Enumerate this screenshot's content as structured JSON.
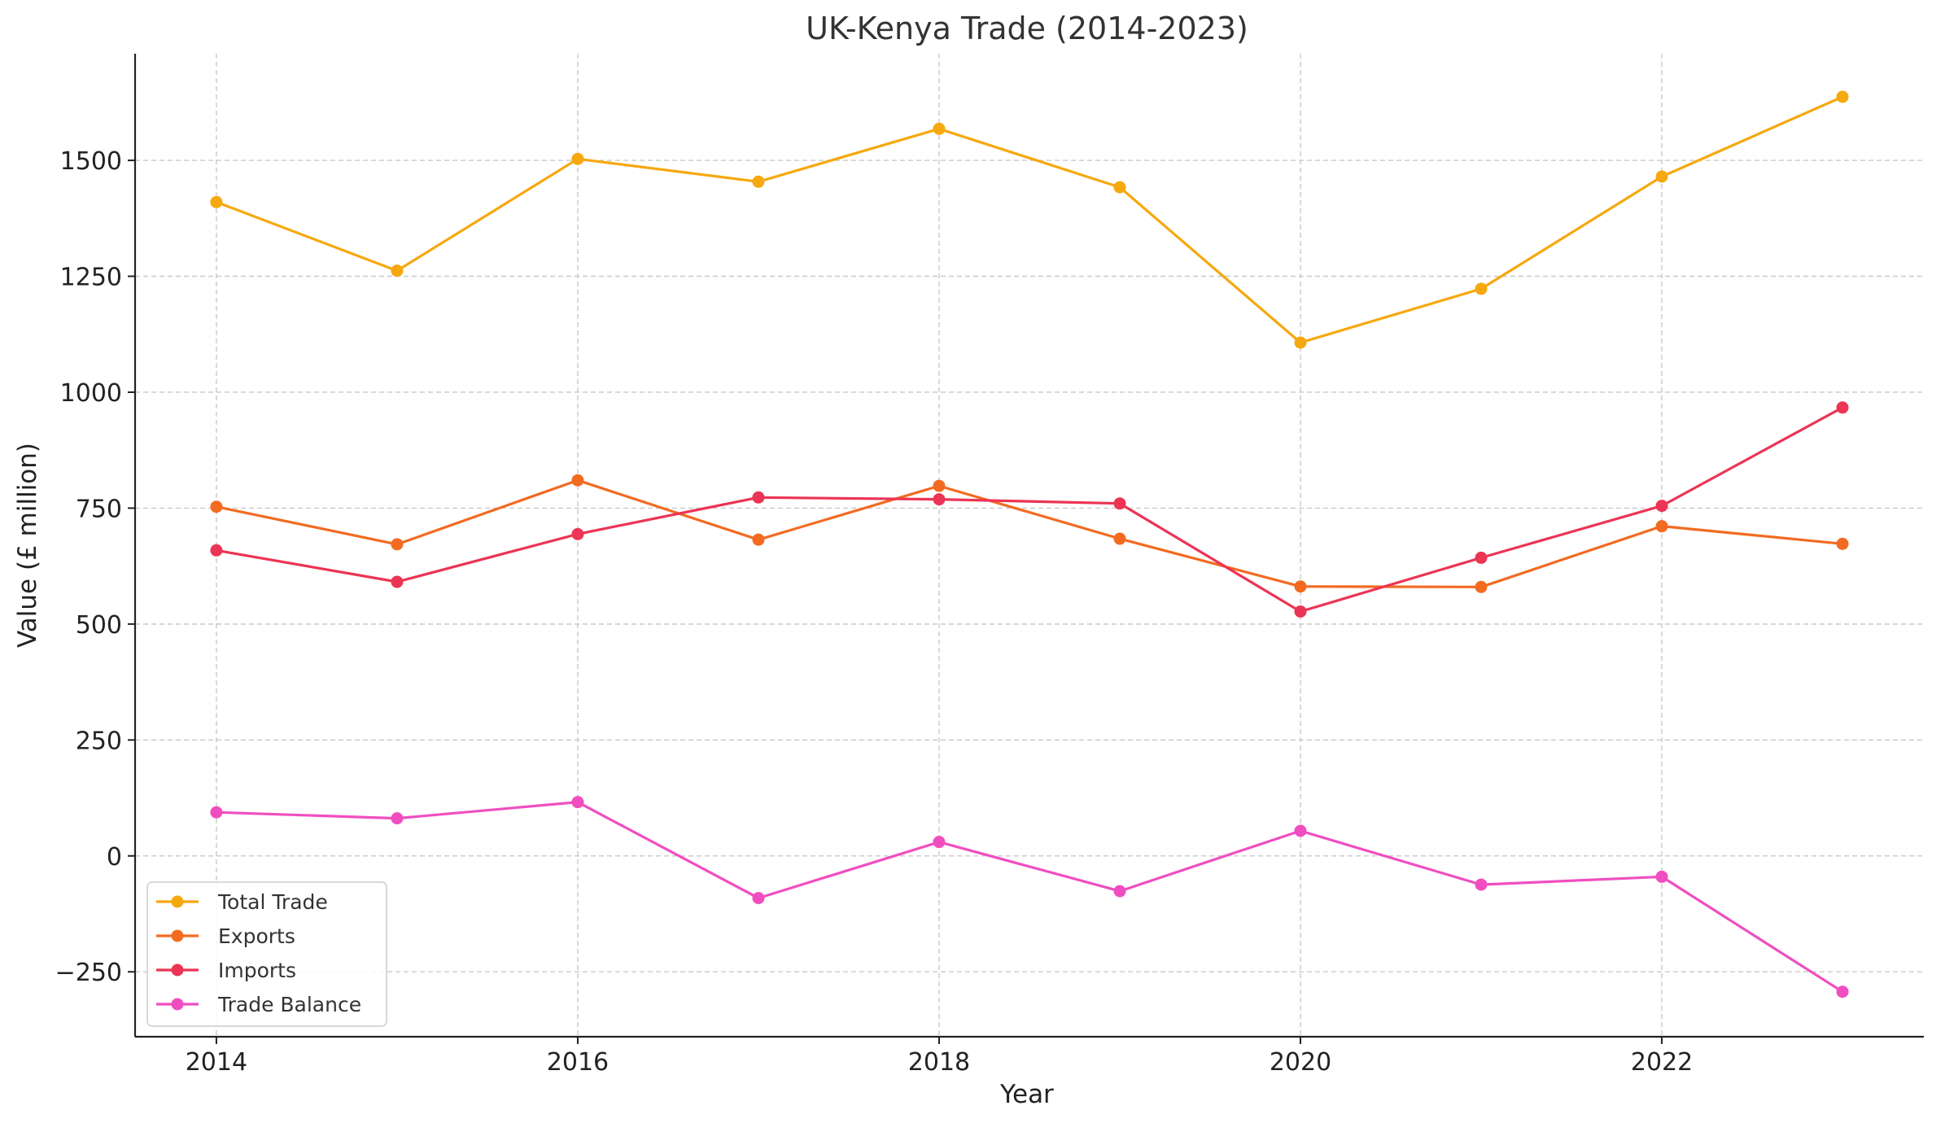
{
  "chart_data": {
    "type": "line",
    "title": "UK-Kenya Trade (2014-2023)",
    "xlabel": "Year",
    "ylabel": "Value (£ million)",
    "x": [
      2014,
      2015,
      2016,
      2017,
      2018,
      2019,
      2020,
      2021,
      2022,
      2023
    ],
    "xticks": [
      2014,
      2016,
      2018,
      2020,
      2022
    ],
    "yticks": [
      -250,
      0,
      250,
      500,
      750,
      1000,
      1250,
      1500
    ],
    "ytick_labels": [
      "−250",
      "0",
      "250",
      "500",
      "750",
      "1000",
      "1250",
      "1500"
    ],
    "xlim": [
      2013.55,
      2023.45
    ],
    "ylim": [
      -390,
      1730
    ],
    "grid": true,
    "legend_position": "lower-left",
    "series": [
      {
        "name": "Total Trade",
        "color": "#F6A80F",
        "values": [
          1410,
          1262,
          1503,
          1454,
          1568,
          1442,
          1107,
          1223,
          1465,
          1637
        ]
      },
      {
        "name": "Exports",
        "color": "#F26B21",
        "values": [
          753,
          672,
          810,
          682,
          798,
          684,
          581,
          580,
          711,
          673
        ]
      },
      {
        "name": "Imports",
        "color": "#EC3454",
        "values": [
          659,
          591,
          694,
          773,
          769,
          760,
          527,
          643,
          755,
          967
        ]
      },
      {
        "name": "Trade Balance",
        "color": "#F04EC0",
        "values": [
          94,
          81,
          116,
          -91,
          30,
          -76,
          54,
          -62,
          -45,
          -293
        ]
      }
    ]
  }
}
